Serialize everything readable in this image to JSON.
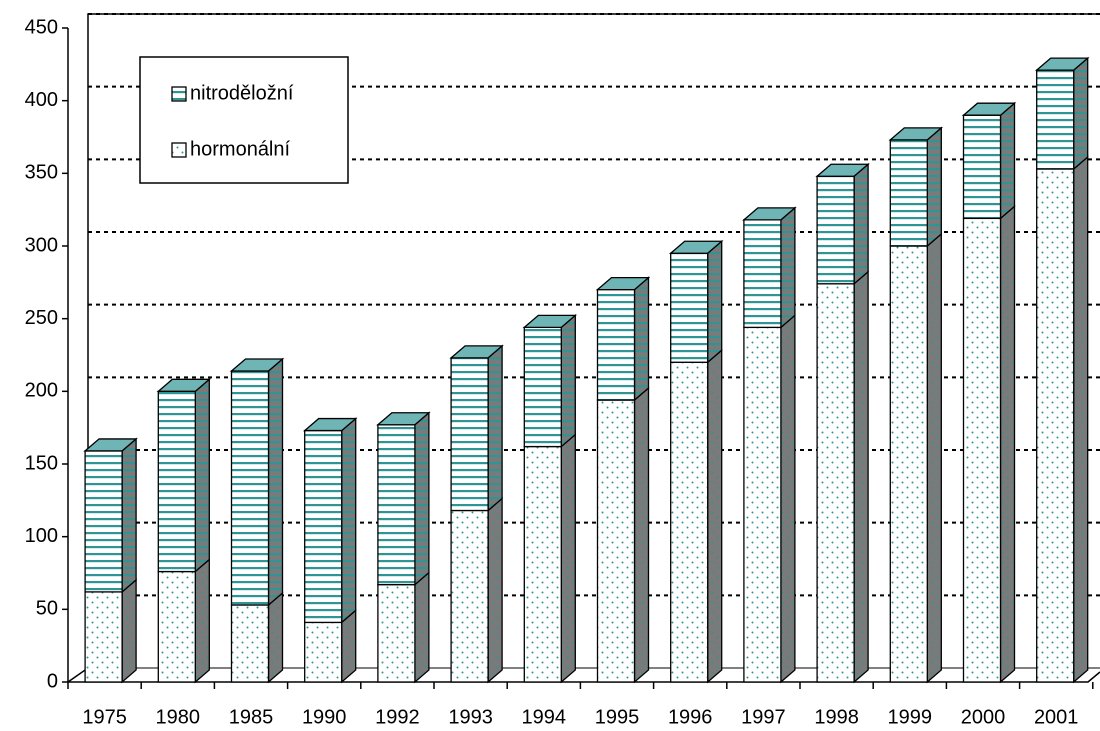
{
  "chart_data": {
    "type": "bar",
    "stacked": true,
    "categories": [
      "1975",
      "1980",
      "1985",
      "1990",
      "1992",
      "1993",
      "1994",
      "1995",
      "1996",
      "1997",
      "1998",
      "1999",
      "2000",
      "2001"
    ],
    "series": [
      {
        "name": "hormonální",
        "color": "#2e9494",
        "pattern": "dots",
        "values": [
          62,
          76,
          53,
          41,
          67,
          118,
          162,
          194,
          220,
          244,
          274,
          300,
          319,
          353
        ]
      },
      {
        "name": "nitroděložní",
        "color": "#2e9494",
        "pattern": "stripes",
        "values": [
          97,
          124,
          161,
          132,
          110,
          105,
          82,
          76,
          75,
          74,
          74,
          73,
          71,
          68
        ]
      }
    ],
    "ylim": [
      0,
      450
    ],
    "yticks": [
      0,
      50,
      100,
      150,
      200,
      250,
      300,
      350,
      400,
      450
    ],
    "grid": true,
    "legend": "upper left"
  }
}
